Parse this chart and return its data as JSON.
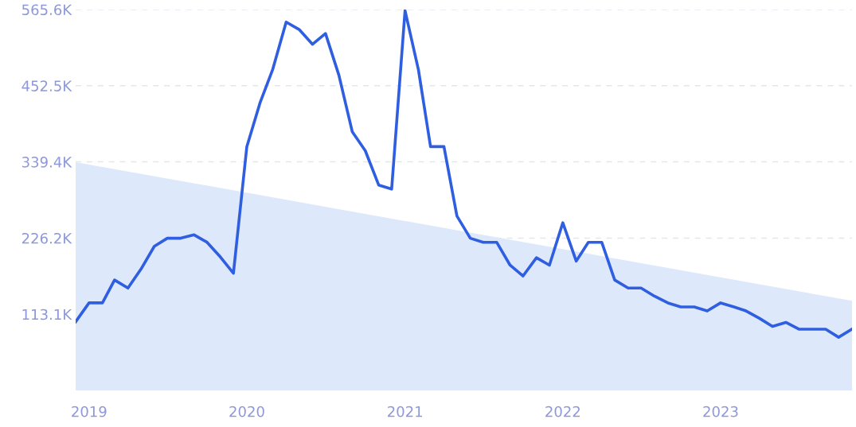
{
  "chart_data": {
    "type": "line",
    "x": [
      "2018-12",
      "2019-01",
      "2019-02",
      "2019-03",
      "2019-04",
      "2019-05",
      "2019-06",
      "2019-07",
      "2019-08",
      "2019-09",
      "2019-10",
      "2019-11",
      "2019-12",
      "2020-01",
      "2020-02",
      "2020-03",
      "2020-04",
      "2020-05",
      "2020-06",
      "2020-07",
      "2020-08",
      "2020-09",
      "2020-10",
      "2020-11",
      "2020-12",
      "2021-01",
      "2021-02",
      "2021-03",
      "2021-04",
      "2021-05",
      "2021-06",
      "2021-07",
      "2021-08",
      "2021-09",
      "2021-10",
      "2021-11",
      "2021-12",
      "2022-01",
      "2022-02",
      "2022-03",
      "2022-04",
      "2022-05",
      "2022-06",
      "2022-07",
      "2022-08",
      "2022-09",
      "2022-10",
      "2022-11",
      "2022-12",
      "2023-01",
      "2023-02",
      "2023-03",
      "2023-04",
      "2023-05",
      "2023-06",
      "2023-07",
      "2023-08",
      "2023-09",
      "2023-10",
      "2023-11"
    ],
    "series": [
      {
        "type": "area",
        "color": "#dde9fb",
        "x": [
          "2018-12",
          "2023-11"
        ],
        "values": [
          339000,
          133000
        ]
      },
      {
        "color": "#2f5fe0",
        "values": [
          102000,
          130000,
          130000,
          164000,
          152000,
          180000,
          214000,
          226000,
          226000,
          231000,
          220000,
          198000,
          174000,
          362000,
          428000,
          477000,
          547000,
          536000,
          514000,
          530000,
          468000,
          384000,
          356000,
          305000,
          299000,
          564000,
          476000,
          362000,
          362000,
          259000,
          226000,
          220000,
          220000,
          186000,
          170000,
          197000,
          186000,
          249000,
          192000,
          220000,
          220000,
          164000,
          152000,
          152000,
          140000,
          130000,
          124000,
          124000,
          118000,
          130000,
          124000,
          118000,
          107000,
          95000,
          101000,
          91000,
          91000,
          91000,
          79000,
          91000
        ]
      }
    ],
    "xlim": [
      "2018-12",
      "2023-11"
    ],
    "xticks": [
      {
        "value": "2019",
        "label": "2019"
      },
      {
        "value": "2020",
        "label": "2020"
      },
      {
        "value": "2021",
        "label": "2021"
      },
      {
        "value": "2022",
        "label": "2022"
      },
      {
        "value": "2023",
        "label": "2023"
      }
    ],
    "ylim": [
      0,
      565600
    ],
    "yticks": [
      {
        "value": 113100,
        "label": "113.1K"
      },
      {
        "value": 226200,
        "label": "226.2K"
      },
      {
        "value": 339400,
        "label": "339.4K"
      },
      {
        "value": 452500,
        "label": "452.5K"
      },
      {
        "value": 565600,
        "label": "565.6K"
      }
    ],
    "grid": "y",
    "marker": "none",
    "line_style": "solid"
  }
}
